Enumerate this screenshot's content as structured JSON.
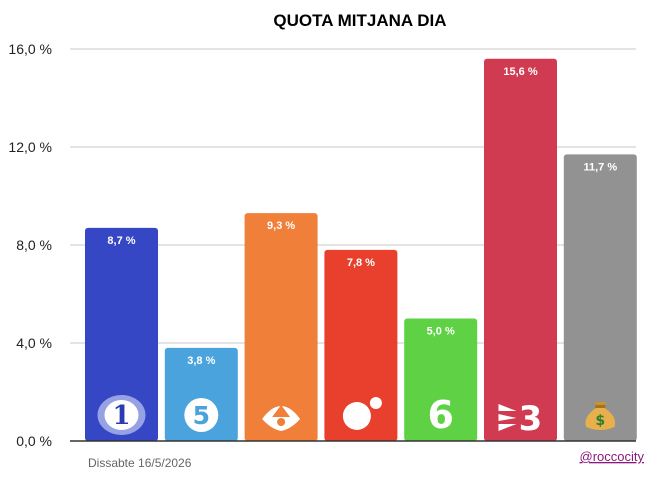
{
  "chart_data": {
    "type": "bar",
    "title": "QUOTA MITJANA DIA",
    "categories": [
      "1",
      "5",
      "A3",
      "Cuatro",
      "6",
      "3",
      "💰"
    ],
    "values": [
      8.7,
      3.8,
      9.3,
      7.8,
      5.0,
      15.6,
      11.7
    ],
    "value_labels": [
      "8,7 %",
      "3,8 %",
      "9,3 %",
      "7,8 %",
      "5,0 %",
      "15,6 %",
      "11,7 %"
    ],
    "colors": [
      "#3547c4",
      "#4aa3dc",
      "#f07f3a",
      "#e8402d",
      "#5ed244",
      "#d03b52",
      "#929292"
    ],
    "ylim": [
      0,
      16
    ],
    "yticks": [
      0,
      4,
      8,
      12,
      16
    ],
    "ytick_labels": [
      "0,0 %",
      "4,0 %",
      "8,0 %",
      "12,0 %",
      "16,0 %"
    ],
    "grid": true,
    "legend": "none",
    "icons": [
      "la1-icon",
      "telecinco-icon",
      "antena3-icon",
      "cuatro-icon",
      "lasexta-icon",
      "tv3-icon",
      "money-bag-icon"
    ]
  },
  "footer": {
    "date": "Dissabte 16/5/2026",
    "handle": "@roccocity"
  }
}
